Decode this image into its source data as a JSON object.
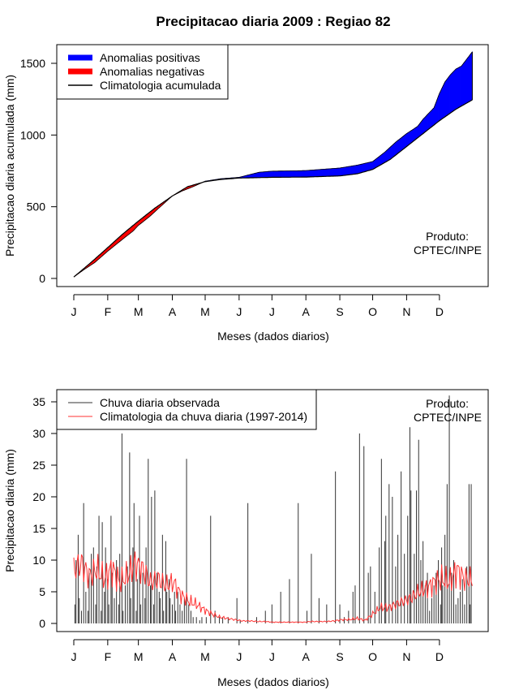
{
  "page_title": "Precipitacao diaria 2009 : Regiao 82",
  "colors": {
    "positive": "#0000ff",
    "negative": "#ff0000",
    "climatology_line": "#000000",
    "observed_bars": "#333333",
    "daily_climatology": "#ff3333"
  },
  "chart_data": [
    {
      "type": "area",
      "title": "Precipitacao diaria 2009 : Regiao 82",
      "xlabel": "Meses (dados diarios)",
      "ylabel": "Precipitacao diaria acumulada (mm)",
      "ylim": [
        0,
        1600
      ],
      "yticks": [
        0,
        500,
        1000,
        1500
      ],
      "ytick_labels": [
        "0",
        "500",
        "1000",
        "1500"
      ],
      "month_ticks_day": [
        1,
        32,
        60,
        91,
        121,
        152,
        182,
        213,
        244,
        274,
        305,
        335
      ],
      "month_labels": [
        "J",
        "F",
        "M",
        "A",
        "M",
        "J",
        "J",
        "A",
        "S",
        "O",
        "N",
        "D"
      ],
      "legend_position": "top-left",
      "legend": [
        {
          "label": "Anomalias positivas",
          "key": "positive"
        },
        {
          "label": "Anomalias negativas",
          "key": "negative"
        },
        {
          "label": "Climatologia acumulada",
          "key": "climatology"
        }
      ],
      "annotation": [
        "Produto:",
        "CPTEC/INPE"
      ],
      "climatology_days": [
        1,
        15,
        32,
        45,
        60,
        75,
        91,
        105,
        121,
        135,
        152,
        182,
        213,
        244,
        260,
        274,
        290,
        305,
        320,
        335,
        350,
        365
      ],
      "climatology_values": [
        10,
        100,
        215,
        305,
        400,
        490,
        575,
        640,
        675,
        690,
        700,
        705,
        707,
        715,
        730,
        760,
        830,
        920,
        1010,
        1100,
        1180,
        1245
      ],
      "observed_days": [
        1,
        10,
        20,
        32,
        45,
        55,
        60,
        70,
        80,
        91,
        100,
        110,
        121,
        135,
        152,
        170,
        182,
        200,
        213,
        244,
        260,
        274,
        285,
        295,
        305,
        315,
        320,
        330,
        335,
        340,
        345,
        350,
        355,
        365
      ],
      "observed_values": [
        10,
        60,
        110,
        190,
        270,
        330,
        370,
        430,
        500,
        575,
        610,
        640,
        678,
        695,
        705,
        740,
        748,
        750,
        752,
        770,
        790,
        815,
        880,
        950,
        1010,
        1060,
        1110,
        1190,
        1290,
        1370,
        1420,
        1460,
        1480,
        1580
      ]
    },
    {
      "type": "bar",
      "xlabel": "Meses (dados diarios)",
      "ylabel": "Precipitacao diaria (mm)",
      "ylim": [
        0,
        35
      ],
      "yticks": [
        0,
        5,
        10,
        15,
        20,
        25,
        30,
        35
      ],
      "ytick_labels": [
        "0",
        "5",
        "10",
        "15",
        "20",
        "25",
        "30",
        "35"
      ],
      "month_ticks_day": [
        1,
        32,
        60,
        91,
        121,
        152,
        182,
        213,
        244,
        274,
        305,
        335
      ],
      "month_labels": [
        "J",
        "F",
        "M",
        "A",
        "M",
        "J",
        "J",
        "A",
        "S",
        "O",
        "N",
        "D"
      ],
      "legend_position": "top-left",
      "legend": [
        {
          "label": "Chuva diaria observada",
          "key": "observed"
        },
        {
          "label": "Climatologia da chuva diaria (1997-2014)",
          "key": "daily_climatology"
        }
      ],
      "annotation": [
        "Produto:",
        "CPTEC/INPE"
      ],
      "series": [
        {
          "name": "Chuva diaria observada",
          "x": [
            2,
            3,
            5,
            6,
            8,
            10,
            12,
            14,
            15,
            17,
            19,
            21,
            22,
            24,
            26,
            27,
            29,
            30,
            32,
            33,
            35,
            36,
            38,
            40,
            42,
            43,
            45,
            46,
            48,
            50,
            52,
            53,
            55,
            56,
            58,
            59,
            61,
            62,
            64,
            66,
            67,
            69,
            71,
            72,
            74,
            75,
            77,
            79,
            80,
            82,
            83,
            85,
            86,
            88,
            89,
            91,
            93,
            94,
            96,
            98,
            100,
            102,
            104,
            106,
            108,
            110,
            113,
            116,
            118,
            122,
            126,
            130,
            134,
            137,
            142,
            150,
            153,
            160,
            168,
            176,
            182,
            190,
            198,
            206,
            214,
            218,
            225,
            232,
            240,
            244,
            248,
            252,
            256,
            258,
            262,
            266,
            270,
            272,
            276,
            280,
            282,
            285,
            286,
            289,
            292,
            295,
            297,
            300,
            303,
            306,
            308,
            309,
            312,
            314,
            316,
            318,
            320,
            322,
            324,
            326,
            328,
            330,
            332,
            334,
            336,
            337,
            338,
            340,
            342,
            344,
            346,
            348,
            350,
            352,
            354,
            356,
            358,
            360,
            362,
            363,
            364
          ],
          "values": [
            3,
            10,
            14,
            4,
            2,
            19,
            5,
            2,
            8,
            11,
            12,
            3,
            9,
            17,
            2,
            16,
            5,
            12,
            7,
            3,
            17,
            8,
            4,
            10,
            3,
            11,
            30,
            2,
            6,
            9,
            27,
            4,
            12,
            19,
            2,
            7,
            17,
            3,
            8,
            4,
            12,
            26,
            6,
            20,
            3,
            21,
            8,
            5,
            4,
            14,
            2,
            13,
            5,
            7,
            4,
            3,
            5,
            2,
            5,
            3,
            2,
            4,
            26,
            3,
            2,
            1,
            1,
            0.5,
            1,
            1,
            17,
            2,
            1,
            1,
            1,
            4,
            0.5,
            19,
            1,
            2,
            3,
            5,
            7,
            19,
            2,
            11,
            4,
            3,
            24,
            3,
            1,
            2,
            5,
            6,
            30,
            28,
            8,
            9,
            5,
            12,
            26,
            13,
            17,
            22,
            20,
            9,
            14,
            24,
            11,
            17,
            31,
            21,
            11,
            21,
            29,
            10,
            13,
            6,
            8,
            2,
            4,
            6,
            8,
            10,
            3,
            12,
            6,
            14,
            22,
            36,
            8,
            10,
            3,
            4,
            5,
            7,
            3,
            9,
            22,
            3,
            22
          ]
        },
        {
          "name": "Climatologia da chuva diaria (1997-2014)",
          "x": [
            1,
            8,
            15,
            22,
            29,
            36,
            43,
            50,
            57,
            64,
            71,
            78,
            85,
            92,
            99,
            106,
            113,
            120,
            127,
            134,
            141,
            148,
            155,
            162,
            169,
            176,
            183,
            190,
            197,
            204,
            211,
            218,
            225,
            232,
            239,
            246,
            253,
            260,
            267,
            274,
            281,
            288,
            295,
            302,
            309,
            316,
            323,
            330,
            337,
            344,
            351,
            358,
            365
          ],
          "values": [
            8.5,
            9.5,
            7.5,
            8.5,
            7,
            8.8,
            6.5,
            7.5,
            9.5,
            8.5,
            6.5,
            7,
            6,
            6.5,
            4.5,
            3.5,
            3,
            2.2,
            1.5,
            1,
            0.8,
            0.6,
            0.4,
            0.4,
            0.3,
            0.3,
            0.2,
            0.2,
            0.2,
            0.2,
            0.2,
            0.3,
            0.3,
            0.3,
            0.4,
            0.6,
            0.6,
            0.8,
            0.5,
            1.5,
            2.5,
            2.5,
            3,
            3.5,
            4,
            5,
            5.5,
            6.5,
            7,
            6.5,
            8.5,
            7,
            7
          ]
        }
      ]
    }
  ]
}
